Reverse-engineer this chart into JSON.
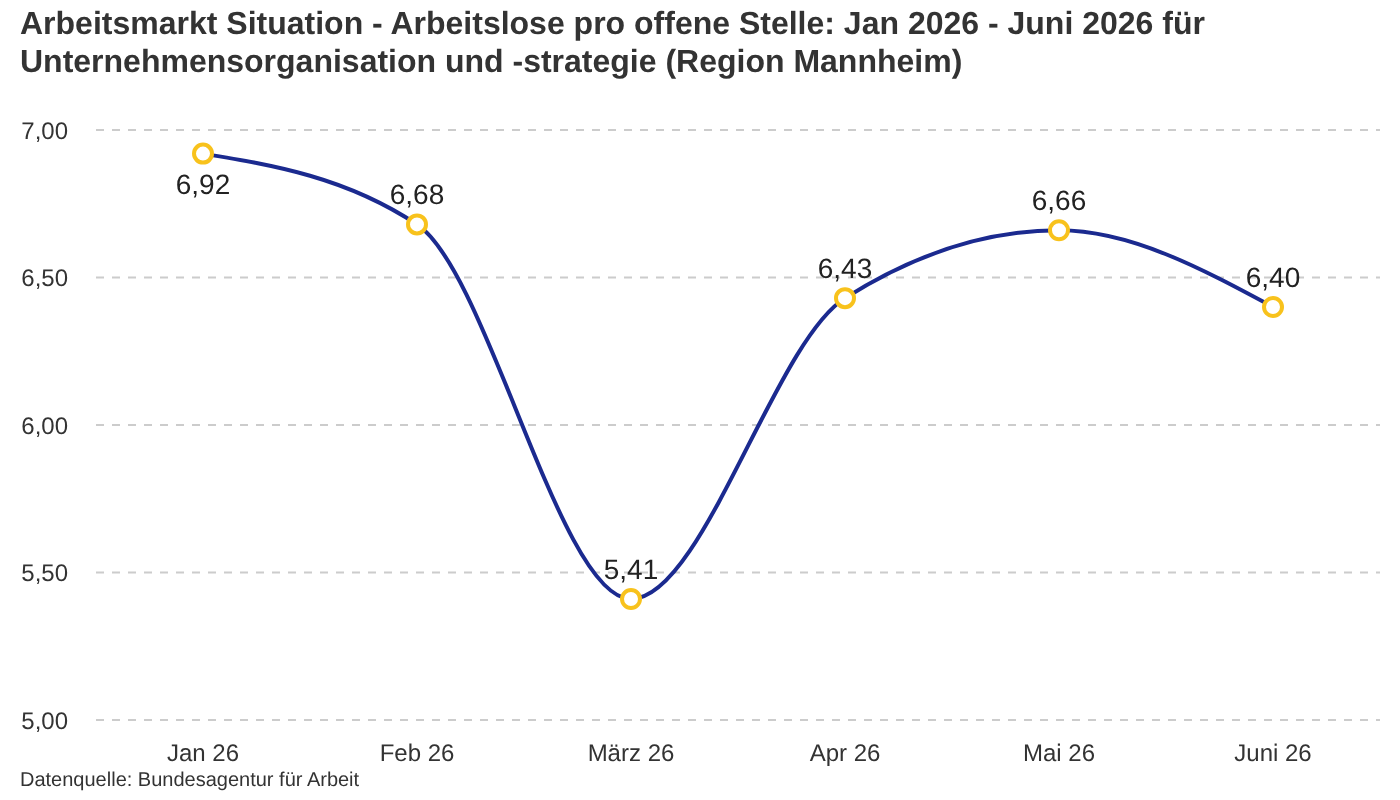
{
  "chart_data": {
    "type": "line",
    "title": "Arbeitsmarkt Situation - Arbeitslose pro offene Stelle: Jan 2026 - Juni 2026 für Unternehmensorganisation und -strategie (Region Mannheim)",
    "categories": [
      "Jan 26",
      "Feb 26",
      "März 26",
      "Apr 26",
      "Mai 26",
      "Juni 26"
    ],
    "values": [
      6.92,
      6.68,
      5.41,
      6.43,
      6.66,
      6.4
    ],
    "value_labels": [
      "6,92",
      "6,68",
      "5,41",
      "6,43",
      "6,66",
      "6,40"
    ],
    "color": "#1b2a8f",
    "colors": [
      "#f8c21c",
      "#f8c21c",
      "#f8c21c",
      "#f8c21c",
      "#f8c21c",
      "#f8c21c"
    ],
    "marker": "circle",
    "line_style": "solid",
    "ylim": [
      5,
      7
    ],
    "yticks": [
      {
        "value": 5,
        "label": "5,00"
      },
      {
        "value": 5.5,
        "label": "5,50"
      },
      {
        "value": 6,
        "label": "6,00"
      },
      {
        "value": 6.5,
        "label": "6,50"
      },
      {
        "value": 7,
        "label": "7,00"
      }
    ],
    "grid": "y",
    "annotations": [
      "Datenquelle: Bundesagentur für Arbeit"
    ]
  }
}
